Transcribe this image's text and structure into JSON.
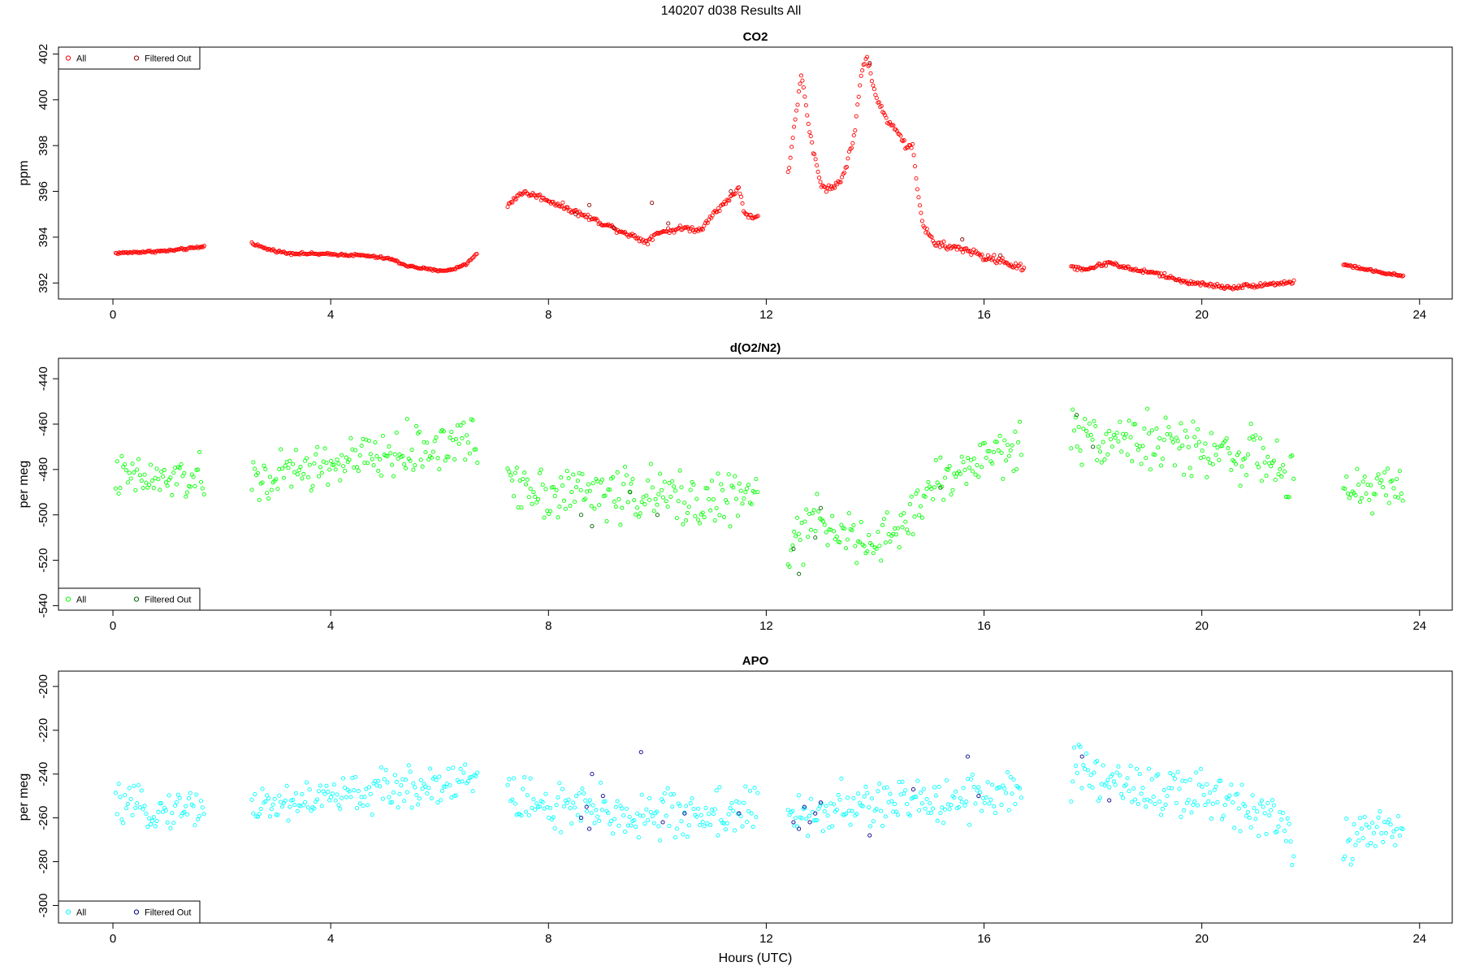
{
  "page_title": "140207   d038   Results All",
  "chart_data": [
    {
      "type": "scatter",
      "title": "CO2",
      "xlabel": "",
      "ylabel": "ppm",
      "xlim": [
        -1,
        24.6
      ],
      "ylim": [
        391.3,
        402.3
      ],
      "x_ticks": [
        0,
        4,
        8,
        12,
        16,
        20,
        24
      ],
      "y_ticks": [
        392,
        394,
        396,
        398,
        400,
        402
      ],
      "grid": false,
      "legend_position": "top-left",
      "colors": {
        "all": "#ff0000",
        "filtered": "#8b0000"
      },
      "legend": [
        "All",
        "Filtered Out"
      ],
      "series": [
        {
          "name": "All",
          "role": "all",
          "segments": [
            {
              "points": [
                [
                  0.05,
                  393.3
                ],
                [
                  0.5,
                  393.35
                ],
                [
                  1.0,
                  393.4
                ],
                [
                  1.4,
                  393.5
                ],
                [
                  1.7,
                  393.6
                ]
              ],
              "noise": 0.04
            },
            {
              "points": [
                [
                  2.55,
                  393.75
                ],
                [
                  2.8,
                  393.5
                ],
                [
                  3.2,
                  393.3
                ],
                [
                  4.0,
                  393.25
                ],
                [
                  4.6,
                  393.2
                ],
                [
                  5.1,
                  393.05
                ],
                [
                  5.4,
                  392.75
                ],
                [
                  5.9,
                  392.55
                ],
                [
                  6.2,
                  392.55
                ],
                [
                  6.5,
                  392.85
                ],
                [
                  6.7,
                  393.3
                ]
              ],
              "noise": 0.04
            },
            {
              "points": [
                [
                  7.25,
                  395.4
                ],
                [
                  7.5,
                  395.95
                ],
                [
                  7.8,
                  395.8
                ],
                [
                  8.3,
                  395.3
                ],
                [
                  8.8,
                  394.8
                ],
                [
                  9.1,
                  394.5
                ],
                [
                  9.5,
                  394.1
                ],
                [
                  9.8,
                  393.8
                ],
                [
                  10.0,
                  394.2
                ],
                [
                  10.5,
                  394.4
                ],
                [
                  10.8,
                  394.3
                ],
                [
                  11.0,
                  395.0
                ],
                [
                  11.3,
                  395.6
                ],
                [
                  11.5,
                  396.2
                ],
                [
                  11.6,
                  395.0
                ],
                [
                  11.85,
                  394.85
                ]
              ],
              "noise": 0.09
            },
            {
              "points": [
                [
                  12.4,
                  396.7
                ],
                [
                  12.55,
                  399.5
                ],
                [
                  12.65,
                  401.1
                ],
                [
                  12.8,
                  398.5
                ],
                [
                  13.0,
                  396.3
                ],
                [
                  13.2,
                  396.1
                ],
                [
                  13.4,
                  396.6
                ],
                [
                  13.6,
                  398.2
                ],
                [
                  13.75,
                  401.2
                ],
                [
                  13.85,
                  401.9
                ],
                [
                  14.0,
                  400.2
                ],
                [
                  14.2,
                  399.2
                ],
                [
                  14.4,
                  398.7
                ],
                [
                  14.55,
                  398.0
                ],
                [
                  14.7,
                  397.9
                ],
                [
                  14.8,
                  395.6
                ],
                [
                  14.9,
                  394.4
                ],
                [
                  15.1,
                  393.7
                ],
                [
                  15.4,
                  393.55
                ],
                [
                  15.7,
                  393.45
                ],
                [
                  16.0,
                  393.1
                ],
                [
                  16.3,
                  393.0
                ],
                [
                  16.6,
                  392.7
                ],
                [
                  16.75,
                  392.6
                ]
              ],
              "noise": 0.12
            },
            {
              "points": [
                [
                  17.6,
                  392.7
                ],
                [
                  17.9,
                  392.6
                ],
                [
                  18.3,
                  392.9
                ],
                [
                  18.7,
                  392.6
                ],
                [
                  19.2,
                  392.4
                ],
                [
                  19.6,
                  392.1
                ],
                [
                  20.0,
                  391.95
                ],
                [
                  20.5,
                  391.8
                ],
                [
                  21.0,
                  391.9
                ],
                [
                  21.5,
                  392.0
                ],
                [
                  21.7,
                  392.05
                ]
              ],
              "noise": 0.07
            },
            {
              "points": [
                [
                  22.6,
                  392.8
                ],
                [
                  23.0,
                  392.6
                ],
                [
                  23.4,
                  392.4
                ],
                [
                  23.7,
                  392.3
                ]
              ],
              "noise": 0.04
            }
          ]
        },
        {
          "name": "Filtered Out",
          "role": "filtered",
          "segments": [
            {
              "points": [
                [
                  8.5,
                  395.0
                ],
                [
                  8.75,
                  395.4
                ],
                [
                  9.2,
                  394.4
                ],
                [
                  9.9,
                  395.5
                ],
                [
                  10.2,
                  394.6
                ],
                [
                  11.35,
                  396.0
                ],
                [
                  13.9,
                  401.6
                ],
                [
                  15.6,
                  393.9
                ],
                [
                  16.3,
                  393.2
                ]
              ],
              "noise": 0.0
            }
          ]
        }
      ]
    },
    {
      "type": "scatter",
      "title": "d(O2/N2)",
      "xlabel": "",
      "ylabel": "per meg",
      "xlim": [
        -1,
        24.6
      ],
      "ylim": [
        -542,
        -431
      ],
      "x_ticks": [
        0,
        4,
        8,
        12,
        16,
        20,
        24
      ],
      "y_ticks": [
        -440,
        -460,
        -480,
        -500,
        -520,
        -540
      ],
      "grid": false,
      "legend_position": "bottom-left",
      "colors": {
        "all": "#00ff00",
        "filtered": "#006400"
      },
      "legend": [
        "All",
        "Filtered Out"
      ],
      "series": [
        {
          "name": "All",
          "role": "all",
          "segments": [
            {
              "points": [
                [
                  0.05,
                  -483
                ],
                [
                  0.8,
                  -485
                ],
                [
                  1.7,
                  -484
                ]
              ],
              "noise": 7
            },
            {
              "points": [
                [
                  2.55,
                  -486
                ],
                [
                  3.5,
                  -480
                ],
                [
                  4.5,
                  -476
                ],
                [
                  5.5,
                  -472
                ],
                [
                  6.5,
                  -467
                ],
                [
                  6.7,
                  -470
                ]
              ],
              "noise": 8
            },
            {
              "points": [
                [
                  7.25,
                  -483
                ],
                [
                  8.0,
                  -490
                ],
                [
                  9.0,
                  -490
                ],
                [
                  10.0,
                  -492
                ],
                [
                  11.0,
                  -494
                ],
                [
                  11.85,
                  -492
                ]
              ],
              "noise": 9
            },
            {
              "points": [
                [
                  12.4,
                  -515
                ],
                [
                  12.8,
                  -505
                ],
                [
                  13.2,
                  -502
                ],
                [
                  13.6,
                  -512
                ],
                [
                  14.0,
                  -515
                ],
                [
                  14.5,
                  -505
                ],
                [
                  15.0,
                  -488
                ],
                [
                  15.5,
                  -482
                ],
                [
                  16.0,
                  -474
                ],
                [
                  16.7,
                  -470
                ]
              ],
              "noise": 8
            },
            {
              "points": [
                [
                  17.6,
                  -464
                ],
                [
                  18.5,
                  -466
                ],
                [
                  19.5,
                  -470
                ],
                [
                  20.5,
                  -472
                ],
                [
                  21.3,
                  -476
                ],
                [
                  21.7,
                  -490
                ]
              ],
              "noise": 9
            },
            {
              "points": [
                [
                  22.6,
                  -490
                ],
                [
                  23.2,
                  -488
                ],
                [
                  23.7,
                  -487
                ]
              ],
              "noise": 7
            }
          ]
        },
        {
          "name": "Filtered Out",
          "role": "filtered",
          "segments": [
            {
              "points": [
                [
                  8.6,
                  -500
                ],
                [
                  8.8,
                  -505
                ],
                [
                  9.5,
                  -490
                ],
                [
                  10.0,
                  -500
                ],
                [
                  12.5,
                  -515
                ],
                [
                  12.6,
                  -526
                ],
                [
                  12.9,
                  -510
                ],
                [
                  13.0,
                  -497
                ],
                [
                  15.2,
                  -488
                ],
                [
                  17.7,
                  -456
                ],
                [
                  18.0,
                  -470
                ]
              ],
              "noise": 0.0
            }
          ]
        }
      ]
    },
    {
      "type": "scatter",
      "title": "APO",
      "xlabel": "Hours (UTC)",
      "ylabel": "per meg",
      "xlim": [
        -1,
        24.6
      ],
      "ylim": [
        -308,
        -193
      ],
      "x_ticks": [
        0,
        4,
        8,
        12,
        16,
        20,
        24
      ],
      "y_ticks": [
        -200,
        -220,
        -240,
        -260,
        -280,
        -300
      ],
      "grid": false,
      "legend_position": "bottom-left",
      "colors": {
        "all": "#00ffff",
        "filtered": "#00008b"
      },
      "legend": [
        "All",
        "Filtered Out"
      ],
      "series": [
        {
          "name": "All",
          "role": "all",
          "segments": [
            {
              "points": [
                [
                  0.05,
                  -254
                ],
                [
                  0.8,
                  -257
                ],
                [
                  1.7,
                  -254
                ]
              ],
              "noise": 6
            },
            {
              "points": [
                [
                  2.55,
                  -255
                ],
                [
                  3.5,
                  -252
                ],
                [
                  4.5,
                  -249
                ],
                [
                  5.5,
                  -246
                ],
                [
                  6.5,
                  -242
                ],
                [
                  6.7,
                  -242
                ]
              ],
              "noise": 7
            },
            {
              "points": [
                [
                  7.25,
                  -250
                ],
                [
                  8.0,
                  -255
                ],
                [
                  9.0,
                  -258
                ],
                [
                  10.0,
                  -259
                ],
                [
                  11.0,
                  -258
                ],
                [
                  11.85,
                  -256
                ]
              ],
              "noise": 9
            },
            {
              "points": [
                [
                  12.4,
                  -262
                ],
                [
                  13.0,
                  -257
                ],
                [
                  14.0,
                  -254
                ],
                [
                  15.0,
                  -252
                ],
                [
                  16.0,
                  -249
                ],
                [
                  16.7,
                  -248
                ]
              ],
              "noise": 8
            },
            {
              "points": [
                [
                  17.6,
                  -240
                ],
                [
                  18.5,
                  -243
                ],
                [
                  19.5,
                  -250
                ],
                [
                  20.5,
                  -252
                ],
                [
                  21.3,
                  -256
                ],
                [
                  21.7,
                  -272
                ]
              ],
              "noise": 10
            },
            {
              "points": [
                [
                  22.6,
                  -270
                ],
                [
                  23.2,
                  -267
                ],
                [
                  23.7,
                  -265
                ]
              ],
              "noise": 7
            }
          ]
        },
        {
          "name": "Filtered Out",
          "role": "filtered",
          "segments": [
            {
              "points": [
                [
                  8.6,
                  -260
                ],
                [
                  8.7,
                  -255
                ],
                [
                  8.75,
                  -265
                ],
                [
                  8.8,
                  -240
                ],
                [
                  9.0,
                  -250
                ],
                [
                  9.7,
                  -230
                ],
                [
                  10.1,
                  -262
                ],
                [
                  10.5,
                  -258
                ],
                [
                  11.5,
                  -258
                ],
                [
                  12.5,
                  -262
                ],
                [
                  12.6,
                  -265
                ],
                [
                  12.7,
                  -255
                ],
                [
                  12.8,
                  -262
                ],
                [
                  12.9,
                  -258
                ],
                [
                  13.0,
                  -253
                ],
                [
                  13.9,
                  -268
                ],
                [
                  14.7,
                  -247
                ],
                [
                  15.7,
                  -232
                ],
                [
                  15.9,
                  -250
                ],
                [
                  17.8,
                  -232
                ],
                [
                  18.3,
                  -252
                ]
              ],
              "noise": 0.0
            }
          ]
        }
      ]
    }
  ]
}
